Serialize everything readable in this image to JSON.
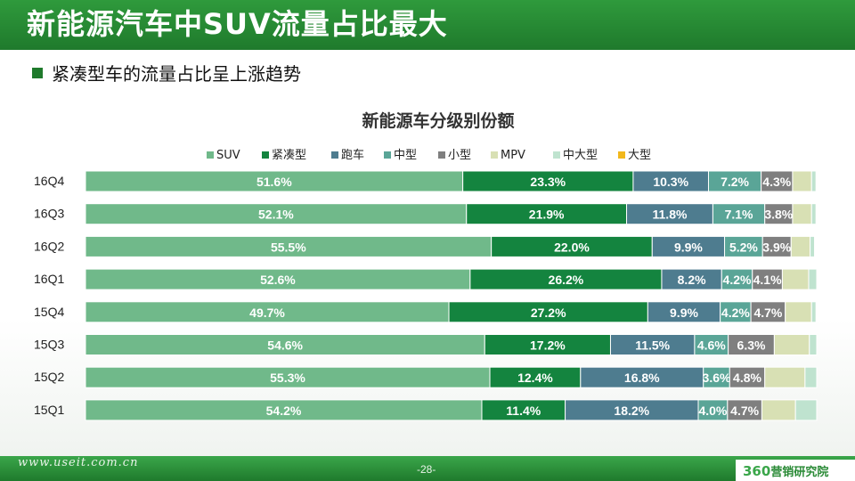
{
  "header": {
    "title": "新能源汽车中SUV流量占比最大"
  },
  "bullet": {
    "text": "紧凑型车的流量占比呈上涨趋势"
  },
  "footer": {
    "url": "www.useit.com.cn",
    "page": "-28-",
    "logo_num": "360",
    "logo_text": "营销研究院"
  },
  "colors": {
    "header_green": "#1f7a2c",
    "SUV": "#70b98a",
    "紧凑型": "#14843f",
    "跑车": "#4e7c8f",
    "中型": "#5aa597",
    "小型": "#7f7f7f",
    "MPV": "#d8e0b4",
    "中大型": "#bfe3cf",
    "大型": "#f2b81c"
  },
  "chart_data": {
    "type": "bar",
    "orientation": "horizontal",
    "stacked": true,
    "title": "新能源车分级别份额",
    "legend_position": "top",
    "categories": [
      "16Q4",
      "16Q3",
      "16Q2",
      "16Q1",
      "15Q4",
      "15Q3",
      "15Q2",
      "15Q1"
    ],
    "series": [
      {
        "name": "SUV",
        "values": [
          51.6,
          52.1,
          55.5,
          52.6,
          49.7,
          54.6,
          55.3,
          54.2
        ]
      },
      {
        "name": "紧凑型",
        "values": [
          23.3,
          21.9,
          22.0,
          26.2,
          27.2,
          17.2,
          12.4,
          11.4
        ]
      },
      {
        "name": "跑车",
        "values": [
          10.3,
          11.8,
          9.9,
          8.2,
          9.9,
          11.5,
          16.8,
          18.2
        ]
      },
      {
        "name": "中型",
        "values": [
          7.2,
          7.1,
          5.2,
          4.2,
          4.2,
          4.6,
          3.6,
          4.0
        ]
      },
      {
        "name": "小型",
        "values": [
          4.3,
          3.8,
          3.9,
          4.1,
          4.7,
          6.3,
          4.8,
          4.7
        ]
      },
      {
        "name": "MPV",
        "values": [
          2.6,
          2.6,
          2.6,
          3.6,
          3.6,
          4.8,
          5.5,
          4.6
        ]
      },
      {
        "name": "中大型",
        "values": [
          0.6,
          0.6,
          0.6,
          1.1,
          0.6,
          1.0,
          1.6,
          2.9
        ]
      },
      {
        "name": "大型",
        "values": [
          0,
          0,
          0,
          0,
          0,
          0,
          0,
          0
        ]
      }
    ],
    "data_labels": [
      [
        "51.6%",
        "23.3%",
        "10.3%",
        "7.2%",
        "4.3%",
        "",
        "",
        ""
      ],
      [
        "52.1%",
        "21.9%",
        "11.8%",
        "7.1%",
        "3.8%",
        "",
        "",
        ""
      ],
      [
        "55.5%",
        "22.0%",
        "9.9%",
        "5.2%",
        "3.9%",
        "",
        "",
        ""
      ],
      [
        "52.6%",
        "26.2%",
        "8.2%",
        "4.2%",
        "4.1%",
        "",
        "",
        ""
      ],
      [
        "49.7%",
        "27.2%",
        "9.9%",
        "4.2%",
        "4.7%",
        "",
        "",
        ""
      ],
      [
        "54.6%",
        "17.2%",
        "11.5%",
        "4.6%",
        "6.3%",
        "",
        "",
        ""
      ],
      [
        "55.3%",
        "12.4%",
        "16.8%",
        "3.6%",
        "4.8%",
        "",
        "",
        ""
      ],
      [
        "54.2%",
        "11.4%",
        "18.2%",
        "4.0%",
        "4.7%",
        "",
        "",
        ""
      ]
    ],
    "xlim": [
      0,
      100
    ]
  }
}
